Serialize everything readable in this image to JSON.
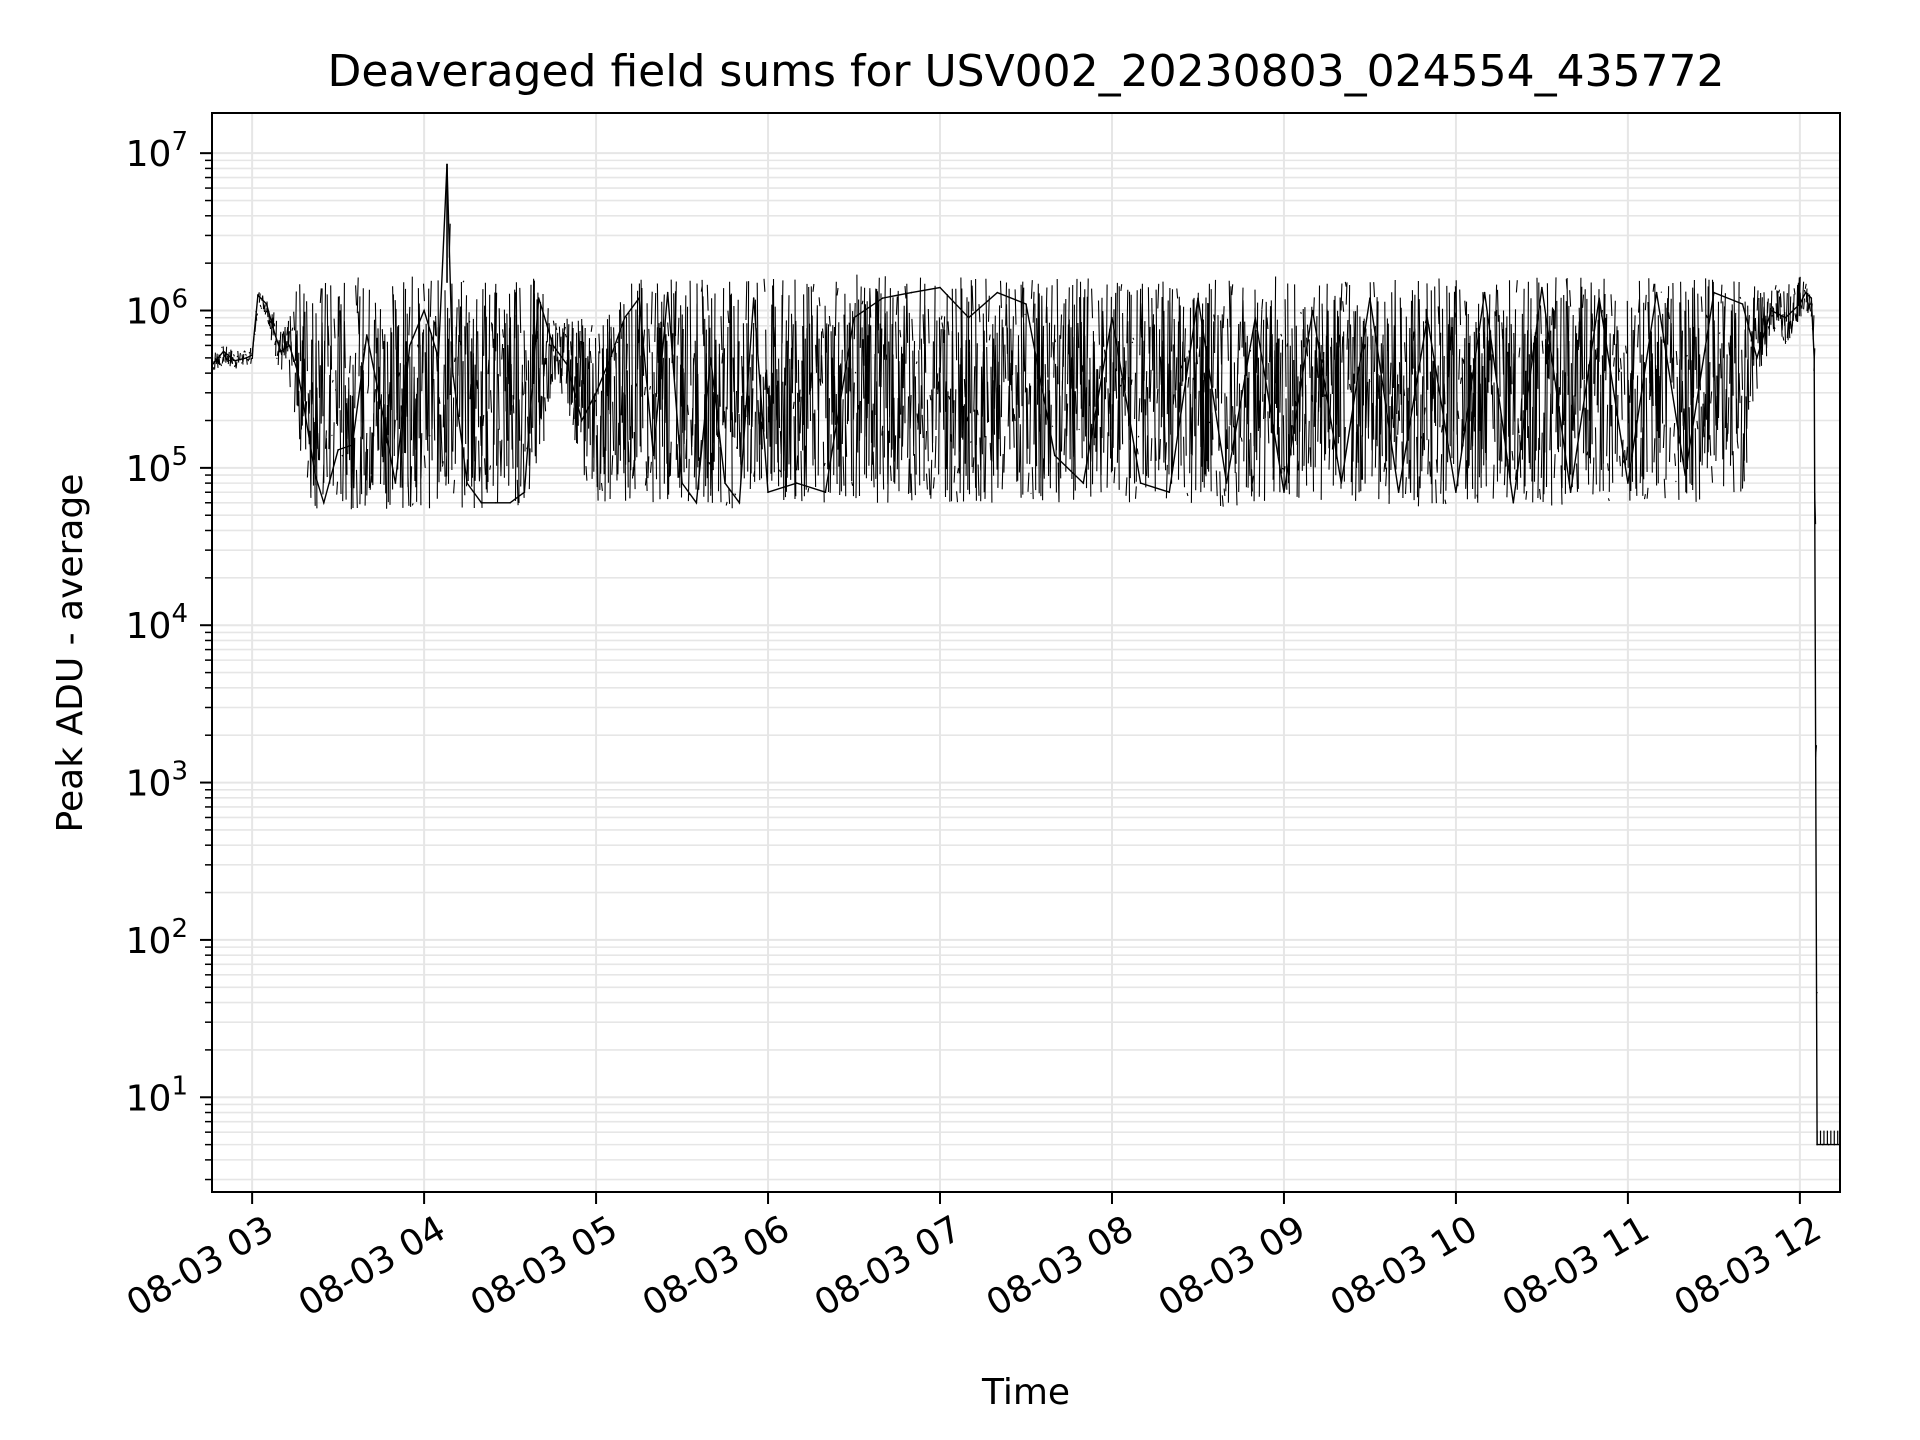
{
  "chart_data": {
    "type": "line",
    "title": "Deaveraged field sums for USV002_20230803_024554_435772",
    "xlabel": "Time",
    "ylabel": "Peak ADU - average",
    "yscale": "log",
    "ylim": [
      2.5,
      18000000
    ],
    "xlim": [
      "08-03 02:46",
      "08-03 12:14"
    ],
    "x_ticks": [
      "08-03 03",
      "08-03 04",
      "08-03 05",
      "08-03 06",
      "08-03 07",
      "08-03 08",
      "08-03 09",
      "08-03 10",
      "08-03 11",
      "08-03 12"
    ],
    "y_ticks": [
      {
        "value": 10,
        "base": "10",
        "exp": "1"
      },
      {
        "value": 100,
        "base": "10",
        "exp": "2"
      },
      {
        "value": 1000,
        "base": "10",
        "exp": "3"
      },
      {
        "value": 10000,
        "base": "10",
        "exp": "4"
      },
      {
        "value": 100000,
        "base": "10",
        "exp": "5"
      },
      {
        "value": 1000000,
        "base": "10",
        "exp": "6"
      },
      {
        "value": 10000000,
        "base": "10",
        "exp": "7"
      }
    ],
    "grid": true,
    "line_color": "#000000",
    "grid_color": "#e6e6e6",
    "series": [
      {
        "x": [
          "08-03 02:46",
          "08-03 02:50",
          "08-03 02:54",
          "08-03 02:58",
          "08-03 03:00",
          "08-03 03:02",
          "08-03 03:05",
          "08-03 03:08",
          "08-03 03:10",
          "08-03 03:13",
          "08-03 03:16",
          "08-03 03:18",
          "08-03 03:20",
          "08-03 03:22",
          "08-03 03:25",
          "08-03 03:30",
          "08-03 03:35",
          "08-03 03:40",
          "08-03 03:45",
          "08-03 03:50",
          "08-03 03:55",
          "08-03 04:00",
          "08-03 04:05",
          "08-03 04:08",
          "08-03 04:10",
          "08-03 04:15",
          "08-03 04:20",
          "08-03 04:25",
          "08-03 04:30",
          "08-03 04:35",
          "08-03 04:40",
          "08-03 04:45",
          "08-03 04:50",
          "08-03 04:55",
          "08-03 05:00",
          "08-03 05:05",
          "08-03 05:10",
          "08-03 05:15",
          "08-03 05:20",
          "08-03 05:25",
          "08-03 05:30",
          "08-03 05:35",
          "08-03 05:40",
          "08-03 05:45",
          "08-03 05:50",
          "08-03 05:55",
          "08-03 06:00",
          "08-03 06:10",
          "08-03 06:20",
          "08-03 06:30",
          "08-03 06:40",
          "08-03 06:50",
          "08-03 07:00",
          "08-03 07:10",
          "08-03 07:20",
          "08-03 07:30",
          "08-03 07:40",
          "08-03 07:50",
          "08-03 08:00",
          "08-03 08:10",
          "08-03 08:20",
          "08-03 08:30",
          "08-03 08:40",
          "08-03 08:50",
          "08-03 09:00",
          "08-03 09:10",
          "08-03 09:20",
          "08-03 09:30",
          "08-03 09:40",
          "08-03 09:50",
          "08-03 10:00",
          "08-03 10:10",
          "08-03 10:20",
          "08-03 10:30",
          "08-03 10:40",
          "08-03 10:50",
          "08-03 11:00",
          "08-03 11:10",
          "08-03 11:20",
          "08-03 11:30",
          "08-03 11:40",
          "08-03 11:45",
          "08-03 11:50",
          "08-03 11:55",
          "08-03 12:00",
          "08-03 12:02",
          "08-03 12:04",
          "08-03 12:05",
          "08-03 12:06",
          "08-03 12:08",
          "08-03 12:10",
          "08-03 12:12",
          "08-03 12:14"
        ],
        "y": [
          450000,
          550000,
          480000,
          500000,
          520000,
          1250000,
          1100000,
          700000,
          550000,
          600000,
          400000,
          250000,
          150000,
          90000,
          60000,
          130000,
          140000,
          700000,
          250000,
          80000,
          600000,
          1000000,
          500000,
          8500000,
          400000,
          80000,
          60000,
          60000,
          60000,
          70000,
          1200000,
          600000,
          450000,
          200000,
          300000,
          500000,
          900000,
          1200000,
          120000,
          1300000,
          80000,
          60000,
          500000,
          80000,
          60000,
          1200000,
          70000,
          80000,
          70000,
          900000,
          1200000,
          1300000,
          1400000,
          900000,
          1300000,
          1100000,
          120000,
          80000,
          900000,
          80000,
          70000,
          1200000,
          80000,
          900000,
          70000,
          1000000,
          80000,
          1200000,
          70000,
          900000,
          70000,
          1300000,
          60000,
          1400000,
          70000,
          1200000,
          80000,
          1300000,
          90000,
          1300000,
          1100000,
          500000,
          1000000,
          900000,
          1100000,
          1300000,
          1200000,
          500000,
          5,
          5,
          5,
          5,
          5
        ],
        "envelope_high": [
          550000,
          600000,
          560000,
          560000,
          600000,
          1350000,
          1250000,
          950000,
          750000,
          900000,
          1600000,
          1700000,
          1500000,
          1600000,
          1700000,
          1600000,
          1650000,
          1650000,
          1600000,
          1600000,
          1650000,
          1650000,
          1600000,
          8500000,
          1600000,
          1650000,
          1650000,
          1650000,
          1650000,
          1650000,
          1650000,
          900000,
          900000,
          900000,
          900000,
          1000000,
          1600000,
          1650000,
          1650000,
          1650000,
          1650000,
          1650000,
          1600000,
          1600000,
          1600000,
          1600000,
          1650000,
          1600000,
          1650000,
          1700000,
          1700000,
          1700000,
          1650000,
          1650000,
          1650000,
          1600000,
          1600000,
          1600000,
          1600000,
          1600000,
          1650000,
          1650000,
          1600000,
          1650000,
          1650000,
          1650000,
          1600000,
          1650000,
          1650000,
          1600000,
          1600000,
          1600000,
          1650000,
          1650000,
          1650000,
          1600000,
          1600000,
          1650000,
          1650000,
          1600000,
          1600000,
          1400000,
          1500000,
          1500000,
          1650000,
          1500000,
          1300000,
          800000,
          5,
          5,
          5,
          5,
          5
        ],
        "envelope_low": [
          400000,
          450000,
          420000,
          450000,
          460000,
          1100000,
          900000,
          500000,
          400000,
          300000,
          160000,
          80000,
          60000,
          50000,
          50000,
          50000,
          55000,
          55000,
          55000,
          55000,
          55000,
          55000,
          55000,
          55000,
          55000,
          55000,
          55000,
          55000,
          55000,
          55000,
          100000,
          350000,
          250000,
          90000,
          60000,
          60000,
          60000,
          60000,
          60000,
          60000,
          60000,
          60000,
          60000,
          55000,
          55000,
          55000,
          55000,
          60000,
          60000,
          60000,
          60000,
          60000,
          60000,
          60000,
          60000,
          60000,
          60000,
          60000,
          60000,
          60000,
          60000,
          55000,
          55000,
          60000,
          60000,
          55000,
          60000,
          60000,
          55000,
          55000,
          55000,
          60000,
          55000,
          55000,
          60000,
          60000,
          60000,
          60000,
          60000,
          60000,
          70000,
          300000,
          700000,
          600000,
          900000,
          1000000,
          900000,
          300000,
          5,
          5,
          5,
          5,
          5
        ]
      }
    ]
  }
}
